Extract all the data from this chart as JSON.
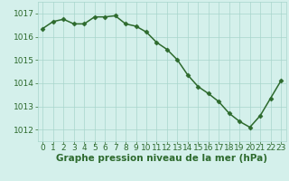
{
  "x": [
    0,
    1,
    2,
    3,
    4,
    5,
    6,
    7,
    8,
    9,
    10,
    11,
    12,
    13,
    14,
    15,
    16,
    17,
    18,
    19,
    20,
    21,
    22,
    23
  ],
  "y": [
    1016.35,
    1016.65,
    1016.75,
    1016.55,
    1016.55,
    1016.85,
    1016.85,
    1016.9,
    1016.55,
    1016.45,
    1016.2,
    1015.75,
    1015.45,
    1015.0,
    1014.35,
    1013.85,
    1013.55,
    1013.2,
    1012.7,
    1012.35,
    1012.1,
    1012.6,
    1013.35,
    1014.1
  ],
  "line_color": "#2d6a2d",
  "marker": "D",
  "marker_size": 2.5,
  "bg_color": "#d4f0eb",
  "grid_color": "#a8d5cc",
  "xlabel": "Graphe pression niveau de la mer (hPa)",
  "xlabel_color": "#2d6a2d",
  "tick_color": "#2d6a2d",
  "ylim": [
    1011.5,
    1017.5
  ],
  "yticks": [
    1012,
    1013,
    1014,
    1015,
    1016,
    1017
  ],
  "xticks": [
    0,
    1,
    2,
    3,
    4,
    5,
    6,
    7,
    8,
    9,
    10,
    11,
    12,
    13,
    14,
    15,
    16,
    17,
    18,
    19,
    20,
    21,
    22,
    23
  ],
  "line_width": 1.1,
  "font_size": 6.5,
  "xlabel_fontsize": 7.5
}
